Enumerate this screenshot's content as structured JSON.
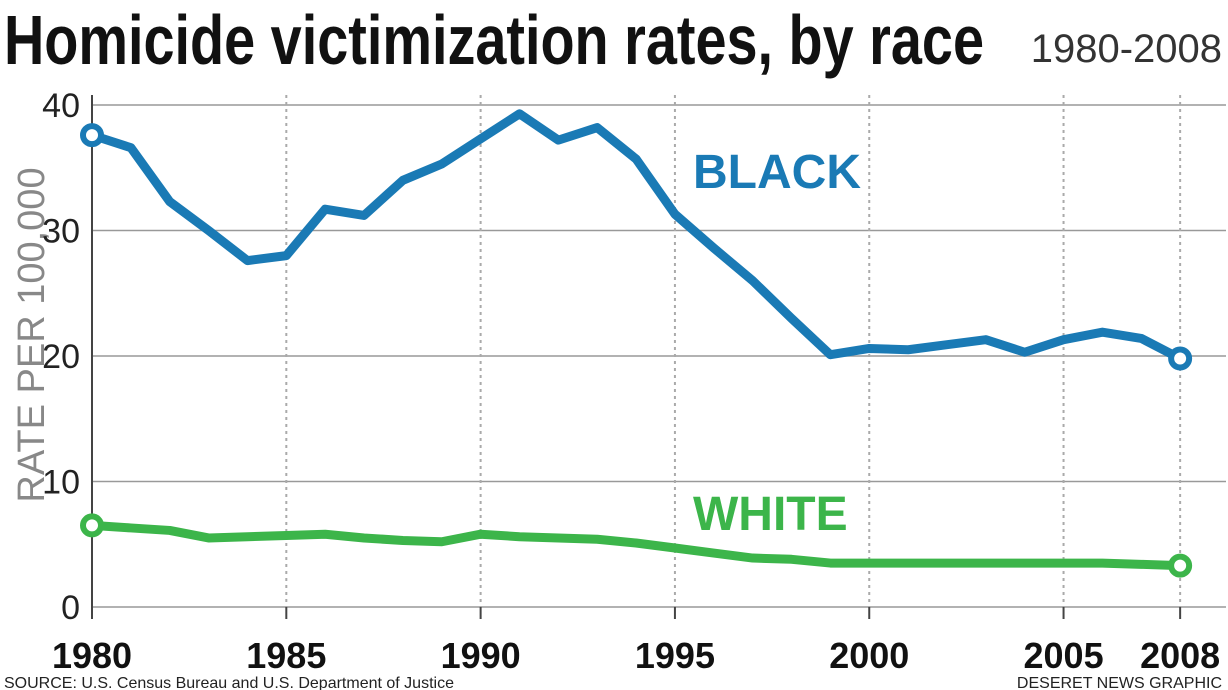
{
  "chart_data": {
    "type": "line",
    "title": "Homicide victimization rates, by race",
    "subtitle": "1980-2008",
    "y_label": "RATE PER 100,000",
    "source": "SOURCE: U.S. Census Bureau and U.S. Department of Justice",
    "credit": "DESERET NEWS GRAPHIC",
    "x": [
      1980,
      1981,
      1982,
      1983,
      1984,
      1985,
      1986,
      1987,
      1988,
      1989,
      1990,
      1991,
      1992,
      1993,
      1994,
      1995,
      1996,
      1997,
      1998,
      1999,
      2000,
      2001,
      2002,
      2003,
      2004,
      2005,
      2006,
      2007,
      2008
    ],
    "series": [
      {
        "name": "BLACK",
        "color": "#1a7ab5",
        "values": [
          37.6,
          36.6,
          32.3,
          30.0,
          27.6,
          28.0,
          31.7,
          31.2,
          34.0,
          35.3,
          37.3,
          39.3,
          37.2,
          38.2,
          35.7,
          31.3,
          28.6,
          26.0,
          23.0,
          20.1,
          20.6,
          20.5,
          20.9,
          21.3,
          20.3,
          21.3,
          21.9,
          21.4,
          19.8
        ]
      },
      {
        "name": "WHITE",
        "color": "#3cb54a",
        "values": [
          6.5,
          6.3,
          6.1,
          5.5,
          5.6,
          5.7,
          5.8,
          5.5,
          5.3,
          5.2,
          5.8,
          5.6,
          5.5,
          5.4,
          5.1,
          4.7,
          4.3,
          3.9,
          3.8,
          3.5,
          3.5,
          3.5,
          3.5,
          3.5,
          3.5,
          3.5,
          3.5,
          3.4,
          3.3
        ]
      }
    ],
    "xlim": [
      1980,
      2009
    ],
    "xticks": [
      1980,
      1985,
      1990,
      1995,
      2000,
      2005,
      2008
    ],
    "ylim": [
      0,
      40
    ],
    "yticks": [
      0,
      10,
      20,
      30,
      40
    ],
    "grid": true
  }
}
